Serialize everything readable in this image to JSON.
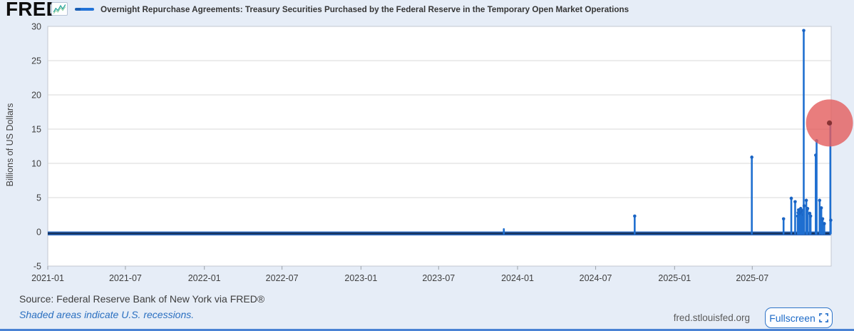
{
  "brand": {
    "logo_text": "FRED",
    "registered_mark": "®"
  },
  "legend": {
    "series_label": "Overnight Repurchase Agreements: Treasury Securities Purchased by the Federal Reserve in the Temporary Open Market Operations"
  },
  "chart_data": {
    "type": "line",
    "title": "Overnight Repurchase Agreements: Treasury Securities Purchased by the Federal Reserve in the Temporary Open Market Operations",
    "ylabel": "Billions of US Dollars",
    "ylim": [
      -5,
      30
    ],
    "y_ticks": [
      30,
      25,
      20,
      15,
      10,
      5,
      0,
      -5
    ],
    "grid": "horizontal",
    "legend_position": "top",
    "series_color": "#1f6fd0",
    "marker_color": "#1a64c4",
    "x_range": [
      "2021-01-01",
      "2026-01-01"
    ],
    "x_ticks": [
      {
        "date": "2021-01-01",
        "label": "2021-01"
      },
      {
        "date": "2021-07-01",
        "label": "2021-07"
      },
      {
        "date": "2022-01-01",
        "label": "2022-01"
      },
      {
        "date": "2022-07-01",
        "label": "2022-07"
      },
      {
        "date": "2023-01-01",
        "label": "2023-01"
      },
      {
        "date": "2023-07-01",
        "label": "2023-07"
      },
      {
        "date": "2024-01-01",
        "label": "2024-01"
      },
      {
        "date": "2024-07-01",
        "label": "2024-07"
      },
      {
        "date": "2025-01-01",
        "label": "2025-01"
      },
      {
        "date": "2025-07-01",
        "label": "2025-07"
      }
    ],
    "baseline": {
      "start": "2021-01-01",
      "end": "2025-12-31",
      "value": 0
    },
    "spikes": [
      {
        "date": "2023-11-30",
        "value": 0.4
      },
      {
        "date": "2024-09-30",
        "value": 2.3
      },
      {
        "date": "2025-06-30",
        "value": 10.9
      },
      {
        "date": "2025-09-12",
        "value": 1.9
      },
      {
        "date": "2025-09-30",
        "value": 4.9
      },
      {
        "date": "2025-10-09",
        "value": 4.4
      },
      {
        "date": "2025-10-15",
        "value": 2.3
      },
      {
        "date": "2025-10-16",
        "value": 2.8
      },
      {
        "date": "2025-10-17",
        "value": 3.2
      },
      {
        "date": "2025-10-20",
        "value": 2.6
      },
      {
        "date": "2025-10-21",
        "value": 3.0
      },
      {
        "date": "2025-10-22",
        "value": 3.4
      },
      {
        "date": "2025-10-23",
        "value": 2.7
      },
      {
        "date": "2025-10-24",
        "value": 2.9
      },
      {
        "date": "2025-10-27",
        "value": 3.1
      },
      {
        "date": "2025-10-28",
        "value": 2.5
      },
      {
        "date": "2025-10-29",
        "value": 29.4
      },
      {
        "date": "2025-10-30",
        "value": 3.8
      },
      {
        "date": "2025-11-04",
        "value": 4.6
      },
      {
        "date": "2025-11-07",
        "value": 3.4
      },
      {
        "date": "2025-11-12",
        "value": 2.7
      },
      {
        "date": "2025-11-14",
        "value": 2.3
      },
      {
        "date": "2025-11-26",
        "value": 11.2
      },
      {
        "date": "2025-11-28",
        "value": 13.3
      },
      {
        "date": "2025-12-05",
        "value": 4.6
      },
      {
        "date": "2025-12-09",
        "value": 3.5
      },
      {
        "date": "2025-12-12",
        "value": 1.9
      },
      {
        "date": "2025-12-16",
        "value": 1.2
      },
      {
        "date": "2025-12-30",
        "value": 15.8
      },
      {
        "date": "2025-12-31",
        "value": 1.7
      }
    ]
  },
  "annotation": {
    "highlight_circle": {
      "date": "2025-12-28",
      "value": 15.9,
      "color": "#e35d5d",
      "center_dot_color": "#7e2c2c"
    }
  },
  "footer": {
    "source": "Source: Federal Reserve Bank of New York via FRED®",
    "recession_note": "Shaded areas indicate U.S. recessions.",
    "site": "fred.stlouisfed.org",
    "fullscreen_label": "Fullscreen"
  }
}
